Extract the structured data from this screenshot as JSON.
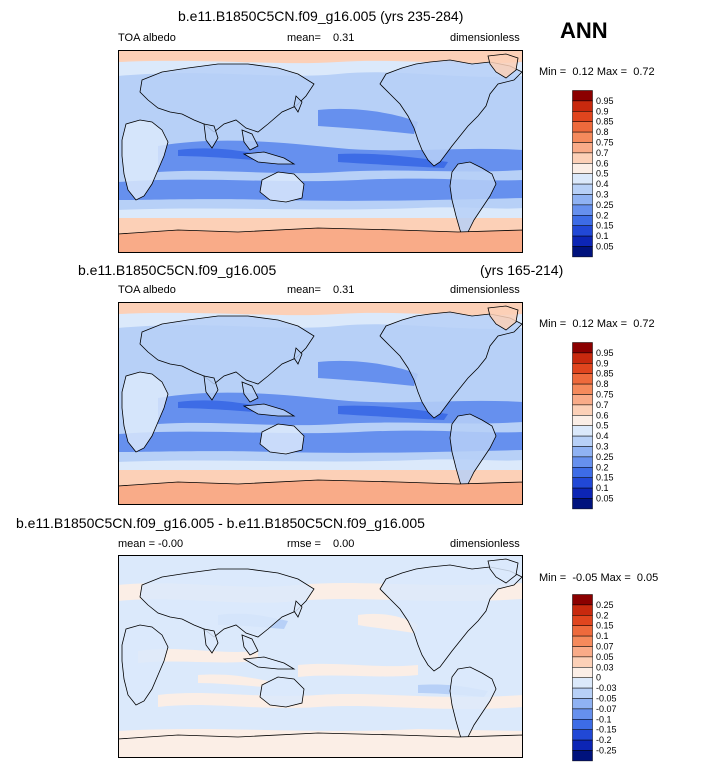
{
  "season_label": "ANN",
  "panels": [
    {
      "title": "b.e11.B1850C5CN.f09_g16.005 (yrs 235-284)",
      "title_right": "",
      "left_label": "TOA albedo",
      "mid_label": "mean=",
      "mid_value": "0.31",
      "right_label": "dimensionless",
      "minmax_min_label": "Min =",
      "minmax_min": "0.12",
      "minmax_max_label": "Max =",
      "minmax_max": "0.72",
      "kind": "abs"
    },
    {
      "title": "b.e11.B1850C5CN.f09_g16.005",
      "title_right": "(yrs 165-214)",
      "left_label": "TOA albedo",
      "mid_label": "mean=",
      "mid_value": "0.31",
      "right_label": "dimensionless",
      "minmax_min_label": "Min =",
      "minmax_min": "0.12",
      "minmax_max_label": "Max =",
      "minmax_max": "0.72",
      "kind": "abs"
    },
    {
      "title": "b.e11.B1850C5CN.f09_g16.005 - b.e11.B1850C5CN.f09_g16.005",
      "title_right": "",
      "left_label": "mean =  -0.00",
      "mid_label": "rmse =",
      "mid_value": "0.00",
      "right_label": "dimensionless",
      "minmax_min_label": "Min =",
      "minmax_min": "-0.05",
      "minmax_max_label": "Max =",
      "minmax_max": "0.05",
      "kind": "diff"
    }
  ],
  "colorbars": {
    "abs": {
      "labels": [
        "0.95",
        "0.9",
        "0.85",
        "0.8",
        "0.75",
        "0.7",
        "0.6",
        "0.5",
        "0.4",
        "0.3",
        "0.25",
        "0.2",
        "0.15",
        "0.1",
        "0.05"
      ],
      "colors": [
        "#8b0000",
        "#c8290e",
        "#e0451e",
        "#ee6a3c",
        "#f58a5c",
        "#f9ab88",
        "#fcd0b7",
        "#fbeee6",
        "#dbe9fb",
        "#b7d0f7",
        "#8fb2f3",
        "#6690ee",
        "#3d6ce6",
        "#2148d6",
        "#0c25b5",
        "#00127d"
      ]
    },
    "diff": {
      "labels": [
        "0.25",
        "0.2",
        "0.15",
        "0.1",
        "0.07",
        "0.05",
        "0.03",
        "0",
        "-0.03",
        "-0.05",
        "-0.07",
        "-0.1",
        "-0.15",
        "-0.2",
        "-0.25"
      ],
      "colors": [
        "#8b0000",
        "#c8290e",
        "#e0451e",
        "#ee6a3c",
        "#f58a5c",
        "#f9ab88",
        "#fcd0b7",
        "#fbeee6",
        "#dbe9fb",
        "#b7d0f7",
        "#8fb2f3",
        "#6690ee",
        "#3d6ce6",
        "#2148d6",
        "#0c25b5",
        "#00127d"
      ]
    }
  },
  "map_colors": {
    "abs_base": "#b7d0f7",
    "abs_low": "#6690ee",
    "abs_lower": "#3d6ce6",
    "abs_mid": "#dbe9fb",
    "abs_high": "#fcd0b7",
    "abs_higher": "#f9ab88",
    "diff_base": "#dbe9fb",
    "diff_warm": "#fbeee6",
    "diff_cool": "#b7d0f7",
    "coast": "#000000"
  }
}
